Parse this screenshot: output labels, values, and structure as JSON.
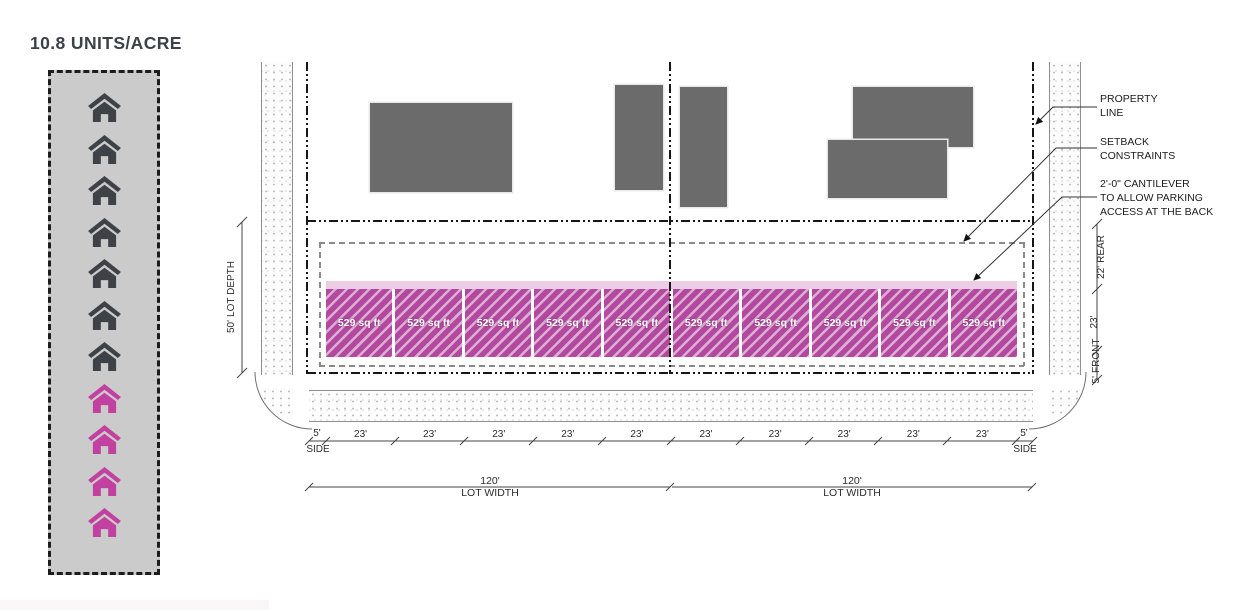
{
  "title": "10.8 UNITS/ACRE",
  "legend": {
    "existing_count": 7,
    "proposed_count": 4,
    "house_dark": "#3e4247",
    "house_pink": "#c2409f",
    "box_fill": "#cbcbcb"
  },
  "plan": {
    "units": {
      "label": "529 sq ft",
      "count": 10
    },
    "colors": {
      "unit_fill": "#b3499f",
      "cantilever": "#edcce5",
      "building": "#6b6b6b"
    }
  },
  "annotations": {
    "property_line": {
      "line1": "PROPERTY",
      "line2": "LINE"
    },
    "setback": {
      "line1": "SETBACK",
      "line2": "CONSTRAINTS"
    },
    "cantilever": {
      "line1": "2'-0\" CANTILEVER",
      "line2": "TO ALLOW PARKING",
      "line3": "ACCESS AT THE BACK"
    }
  },
  "dimensions": {
    "lot_depth_value": "50'",
    "lot_depth_label": "LOT DEPTH",
    "rear_value": "22'",
    "rear_label": "REAR",
    "mid_value": "23'",
    "front_value": "5'",
    "front_label": "FRONT",
    "side_value": "5'",
    "side_label": "SIDE",
    "unit_width": "23'",
    "lot_width_value": "120'",
    "lot_width_label": "LOT WIDTH"
  }
}
